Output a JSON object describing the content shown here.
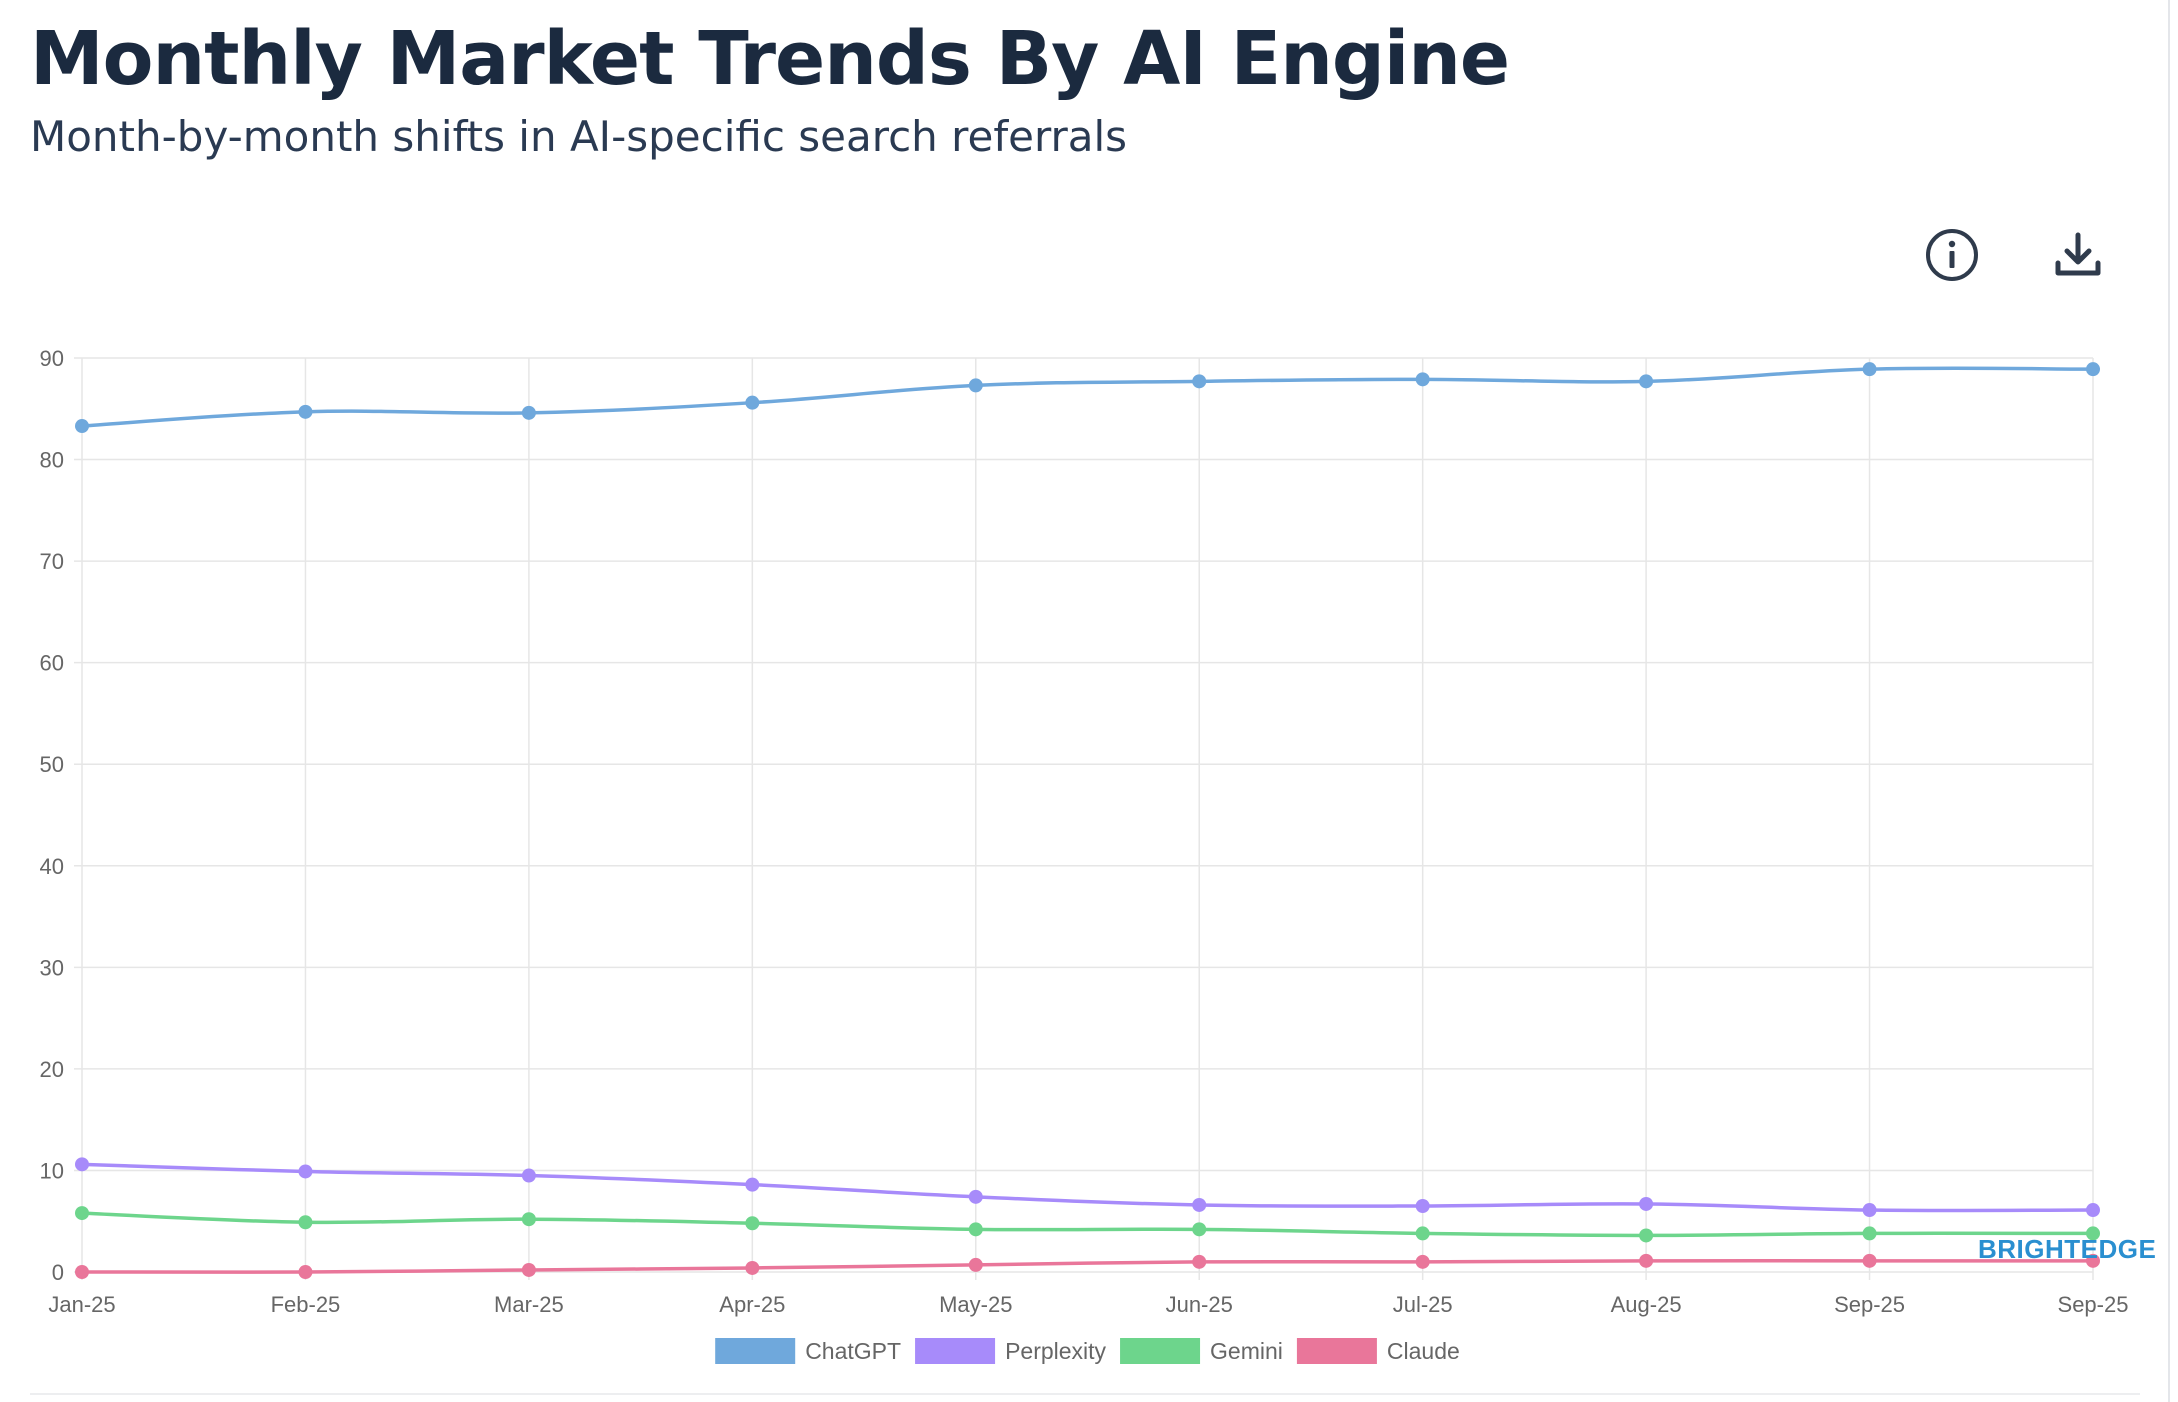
{
  "header": {
    "title": "Monthly Market Trends By AI Engine",
    "subtitle": "Month-by-month shifts in AI-specific search referrals"
  },
  "toolbar": {
    "info_icon": "info-icon",
    "download_icon": "download-icon"
  },
  "watermark": "BRIGHTEDGE",
  "colors": {
    "grid": "#e6e6e6",
    "tick_text": "#666666",
    "brand": "#2a8fd0"
  },
  "chart_data": {
    "type": "line",
    "x": [
      "Jan-25",
      "Feb-25",
      "Mar-25",
      "Apr-25",
      "May-25",
      "Jun-25",
      "Jul-25",
      "Aug-25",
      "Sep-25",
      "Sep-25"
    ],
    "ylim": [
      0,
      90
    ],
    "yticks": [
      0,
      10,
      20,
      30,
      40,
      50,
      60,
      70,
      80,
      90
    ],
    "grid": true,
    "legend_position": "bottom",
    "series": [
      {
        "name": "ChatGPT",
        "color": "#6fa8dc",
        "values": [
          83.3,
          84.7,
          84.6,
          85.6,
          87.3,
          87.7,
          87.9,
          87.7,
          88.9,
          88.9
        ]
      },
      {
        "name": "Perplexity",
        "color": "#a78bfa",
        "values": [
          10.6,
          9.9,
          9.5,
          8.6,
          7.4,
          6.6,
          6.5,
          6.7,
          6.1,
          6.1
        ]
      },
      {
        "name": "Gemini",
        "color": "#6dd58c",
        "values": [
          5.8,
          4.9,
          5.2,
          4.8,
          4.2,
          4.2,
          3.8,
          3.6,
          3.8,
          3.8
        ]
      },
      {
        "name": "Claude",
        "color": "#e9769a",
        "values": [
          0.0,
          0.0,
          0.2,
          0.4,
          0.7,
          1.0,
          1.0,
          1.1,
          1.1,
          1.1
        ]
      }
    ]
  }
}
